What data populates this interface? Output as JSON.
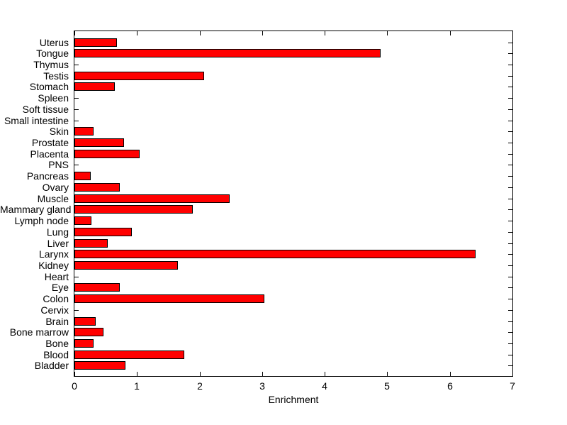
{
  "chart_data": {
    "type": "bar",
    "orientation": "horizontal",
    "title": "",
    "xlabel": "Enrichment",
    "ylabel": "",
    "xlim": [
      0,
      7
    ],
    "xticks": [
      0,
      1,
      2,
      3,
      4,
      5,
      6,
      7
    ],
    "xtick_labels": [
      "0",
      "1",
      "2",
      "3",
      "4",
      "5",
      "6",
      "7"
    ],
    "grid": false,
    "legend": null,
    "bar_color": "#FF0000",
    "bar_edge_color": "#000000",
    "axis_color": "#000000",
    "background_color": "#FFFFFF",
    "categories": [
      "Uterus",
      "Tongue",
      "Thymus",
      "Testis",
      "Stomach",
      "Spleen",
      "Soft tissue",
      "Small intestine",
      "Skin",
      "Prostate",
      "Placenta",
      "PNS",
      "Pancreas",
      "Ovary",
      "Muscle",
      "Mammary gland",
      "Lymph node",
      "Lung",
      "Liver",
      "Larynx",
      "Kidney",
      "Heart",
      "Eye",
      "Colon",
      "Cervix",
      "Brain",
      "Bone marrow",
      "Bone",
      "Blood",
      "Bladder"
    ],
    "values": [
      0.68,
      4.89,
      0,
      2.07,
      0.64,
      0,
      0,
      0,
      0.31,
      0.79,
      1.04,
      0,
      0.26,
      0.72,
      2.48,
      1.89,
      0.27,
      0.92,
      0.53,
      6.41,
      1.65,
      0,
      0.72,
      3.04,
      0,
      0.34,
      0.47,
      0.31,
      1.76,
      0.81
    ]
  }
}
